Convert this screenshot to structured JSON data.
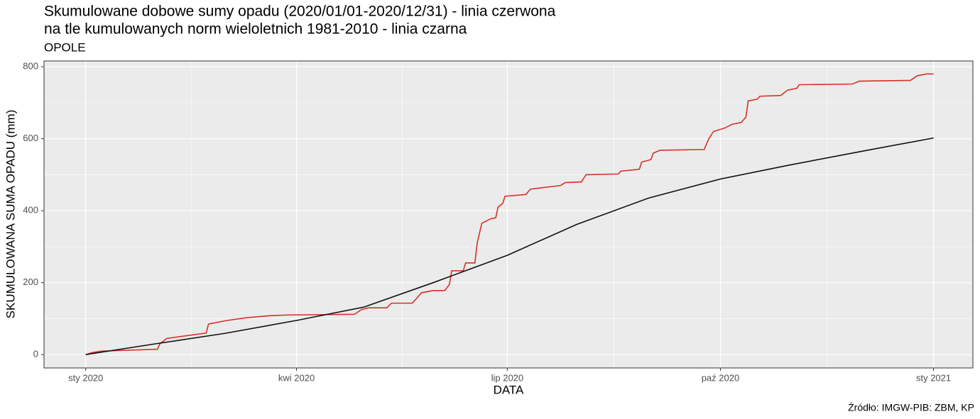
{
  "chart_data": {
    "type": "line",
    "title": [
      "Skumulowane dobowe sumy opadu (2020/01/01-2020/12/31) - linia czerwona",
      "na tle kumulowanych norm wieloletnich 1981-2010 - linia czarna"
    ],
    "subtitle": "OPOLE",
    "x_label": "DATA",
    "y_label": "SKUMULOWANA SUMA OPADU (mm)",
    "caption": "Źródło: IMGW-PIB: ZBM, KP",
    "xlim": [
      -18,
      383
    ],
    "ylim": [
      -37,
      816
    ],
    "xticks": [
      {
        "value": 0,
        "label": "sty 2020"
      },
      {
        "value": 91,
        "label": "kwi 2020"
      },
      {
        "value": 182,
        "label": "lip 2020"
      },
      {
        "value": 274,
        "label": "paź 2020"
      },
      {
        "value": 366,
        "label": "sty 2021"
      }
    ],
    "yticks": [
      0,
      200,
      400,
      600,
      800
    ],
    "grid": true,
    "series": [
      {
        "color": "#d93025",
        "x": [
          0,
          3,
          7,
          17,
          31,
          32,
          35,
          44,
          52,
          53,
          61,
          70,
          79,
          86,
          116,
          119,
          122,
          130,
          132,
          141,
          145,
          150,
          155,
          157,
          158,
          163,
          164,
          168,
          169,
          171,
          175,
          177,
          178,
          180,
          181,
          190,
          192,
          196,
          205,
          207,
          214,
          216,
          230,
          231,
          239,
          240,
          244,
          245,
          248,
          267,
          269,
          271,
          276,
          279,
          283,
          285,
          286,
          290,
          291,
          300,
          303,
          307,
          308,
          331,
          334,
          356,
          359,
          363,
          366
        ],
        "values": [
          0,
          6,
          10,
          12,
          15,
          30,
          45,
          53,
          60,
          85,
          95,
          103,
          108,
          110,
          112,
          125,
          130,
          130,
          143,
          143,
          172,
          178,
          178,
          195,
          233,
          233,
          255,
          255,
          310,
          365,
          378,
          380,
          410,
          420,
          440,
          445,
          460,
          463,
          470,
          478,
          480,
          500,
          502,
          510,
          515,
          535,
          542,
          560,
          568,
          570,
          600,
          620,
          630,
          640,
          645,
          660,
          705,
          710,
          718,
          720,
          735,
          740,
          750,
          752,
          760,
          762,
          775,
          780,
          780
        ]
      },
      {
        "color": "#111111",
        "x": [
          0,
          30,
          60,
          91,
          120,
          150,
          182,
          212,
          243,
          274,
          304,
          335,
          366
        ],
        "values": [
          0,
          30,
          59,
          95,
          132,
          200,
          276,
          362,
          435,
          488,
          527,
          565,
          602
        ]
      }
    ]
  }
}
